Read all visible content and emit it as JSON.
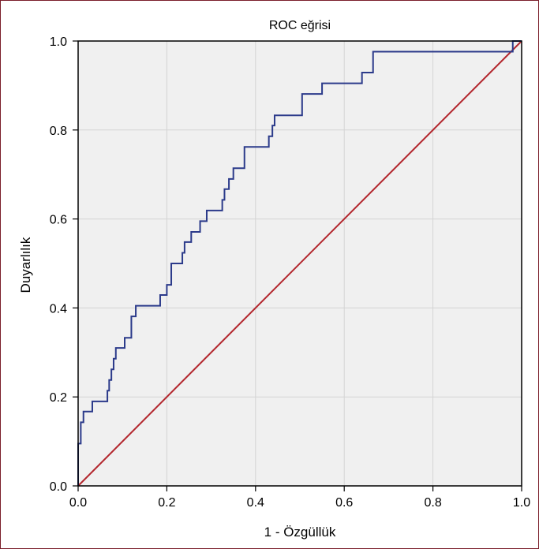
{
  "chart_data": {
    "type": "line",
    "title": "ROC eğrisi",
    "xlabel": "1 - Özgüllük",
    "ylabel": "Duyarlılık",
    "xlim": [
      0.0,
      1.0
    ],
    "ylim": [
      0.0,
      1.0
    ],
    "x_ticks": [
      "0.0",
      "0.2",
      "0.4",
      "0.6",
      "0.8",
      "1.0"
    ],
    "y_ticks": [
      "0.0",
      "0.2",
      "0.4",
      "0.6",
      "0.8",
      "1.0"
    ],
    "grid": true,
    "legend": "none",
    "series": [
      {
        "color": "#2b3a8a",
        "step": true,
        "points": [
          [
            0.0,
            0.0
          ],
          [
            0.0,
            0.095
          ],
          [
            0.006,
            0.095
          ],
          [
            0.006,
            0.143
          ],
          [
            0.012,
            0.143
          ],
          [
            0.012,
            0.167
          ],
          [
            0.032,
            0.167
          ],
          [
            0.032,
            0.19
          ],
          [
            0.066,
            0.19
          ],
          [
            0.066,
            0.214
          ],
          [
            0.07,
            0.214
          ],
          [
            0.07,
            0.238
          ],
          [
            0.075,
            0.238
          ],
          [
            0.075,
            0.262
          ],
          [
            0.08,
            0.262
          ],
          [
            0.08,
            0.286
          ],
          [
            0.085,
            0.286
          ],
          [
            0.085,
            0.31
          ],
          [
            0.105,
            0.31
          ],
          [
            0.105,
            0.333
          ],
          [
            0.12,
            0.333
          ],
          [
            0.12,
            0.381
          ],
          [
            0.13,
            0.381
          ],
          [
            0.13,
            0.405
          ],
          [
            0.185,
            0.405
          ],
          [
            0.185,
            0.429
          ],
          [
            0.2,
            0.429
          ],
          [
            0.2,
            0.452
          ],
          [
            0.21,
            0.452
          ],
          [
            0.21,
            0.5
          ],
          [
            0.235,
            0.5
          ],
          [
            0.235,
            0.524
          ],
          [
            0.24,
            0.524
          ],
          [
            0.24,
            0.548
          ],
          [
            0.255,
            0.548
          ],
          [
            0.255,
            0.571
          ],
          [
            0.275,
            0.571
          ],
          [
            0.275,
            0.595
          ],
          [
            0.29,
            0.595
          ],
          [
            0.29,
            0.619
          ],
          [
            0.325,
            0.619
          ],
          [
            0.325,
            0.643
          ],
          [
            0.33,
            0.643
          ],
          [
            0.33,
            0.667
          ],
          [
            0.34,
            0.667
          ],
          [
            0.34,
            0.69
          ],
          [
            0.35,
            0.69
          ],
          [
            0.35,
            0.714
          ],
          [
            0.375,
            0.714
          ],
          [
            0.375,
            0.762
          ],
          [
            0.43,
            0.762
          ],
          [
            0.43,
            0.786
          ],
          [
            0.438,
            0.786
          ],
          [
            0.438,
            0.81
          ],
          [
            0.443,
            0.81
          ],
          [
            0.443,
            0.833
          ],
          [
            0.505,
            0.833
          ],
          [
            0.505,
            0.881
          ],
          [
            0.55,
            0.881
          ],
          [
            0.55,
            0.905
          ],
          [
            0.64,
            0.905
          ],
          [
            0.64,
            0.929
          ],
          [
            0.665,
            0.929
          ],
          [
            0.665,
            0.976
          ],
          [
            0.98,
            0.976
          ],
          [
            0.98,
            1.0
          ],
          [
            1.0,
            1.0
          ]
        ]
      },
      {
        "color": "#b3262d",
        "step": false,
        "points": [
          [
            0.0,
            0.0
          ],
          [
            1.0,
            1.0
          ]
        ]
      }
    ]
  },
  "colors": {
    "plot_background": "#f0f0f0",
    "grid": "#d4d4d4",
    "axis": "#000000",
    "frame_border": "#7a1e2a"
  }
}
